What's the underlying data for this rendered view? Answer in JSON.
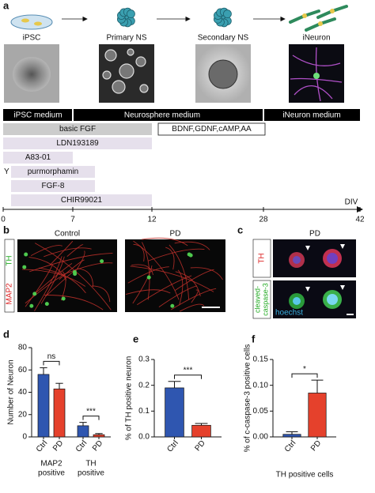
{
  "panel_a": {
    "label": "a",
    "stages": [
      "iPSC",
      "Primary NS",
      "Secondary NS",
      "iNeuron"
    ],
    "media": [
      "iPSC medium",
      "Neurosphere medium",
      "iNeuron medium"
    ],
    "factors": [
      "basic FGF",
      "BDNF,GDNF,cAMP,AA",
      "LDN193189",
      "A83-01",
      "Y",
      "purmorphamin",
      "FGF-8",
      "CHIR99021"
    ],
    "axis_label": "DIV",
    "div_ticks": [
      0,
      7,
      12,
      28,
      42
    ]
  },
  "panel_b": {
    "label": "b",
    "columns": [
      "Control",
      "PD"
    ],
    "stain_labels": [
      "MAP2",
      "TH"
    ]
  },
  "panel_c": {
    "label": "c",
    "title": "PD",
    "stain_labels": [
      "TH",
      [
        "cleaved-",
        "caspase-3"
      ],
      "hoechst"
    ]
  },
  "chart_data": [
    {
      "type": "bar",
      "label": "d",
      "y_label": "Number of Neuron",
      "categories": [
        "Ctrl",
        "PD",
        "Ctrl",
        "PD"
      ],
      "values": [
        56,
        43,
        10,
        2
      ],
      "errors": [
        6,
        5,
        3,
        1
      ],
      "colors": [
        "#2f56b0",
        "#e5412c",
        "#2f56b0",
        "#e5412c"
      ],
      "groups": [
        [
          "MAP2",
          "positive"
        ],
        [
          "TH",
          "positive"
        ]
      ],
      "annotations": [
        "ns",
        "***"
      ],
      "ylim": [
        0,
        80
      ],
      "yticks": [
        0,
        20,
        40,
        60,
        80
      ]
    },
    {
      "type": "bar",
      "label": "e",
      "y_label": "% of TH positive neuron",
      "categories": [
        "Ctrl",
        "PD"
      ],
      "values": [
        0.19,
        0.045
      ],
      "errors": [
        0.025,
        0.007
      ],
      "colors": [
        "#2f56b0",
        "#e5412c"
      ],
      "annotations": [
        "***"
      ],
      "ylim": [
        0,
        0.3
      ],
      "yticks": [
        {
          "value": 0,
          "label": "0.0"
        },
        0.1,
        0.2,
        0.3
      ]
    },
    {
      "type": "bar",
      "label": "f",
      "y_label": "% of c-caspase-3 positive  cells",
      "x_label": "TH positive cells",
      "categories": [
        "Ctrl",
        "PD"
      ],
      "values": [
        0.005,
        0.085
      ],
      "errors": [
        0.005,
        0.025
      ],
      "colors": [
        "#2f56b0",
        "#e5412c"
      ],
      "annotations": [
        "*"
      ],
      "ylim": [
        0,
        0.15
      ],
      "yticks": [
        {
          "value": 0,
          "label": "0.00"
        },
        {
          "value": 0.05,
          "label": "0.05"
        },
        {
          "value": 0.1,
          "label": "0.10"
        },
        {
          "value": 0.15,
          "label": "0.15"
        }
      ]
    }
  ]
}
